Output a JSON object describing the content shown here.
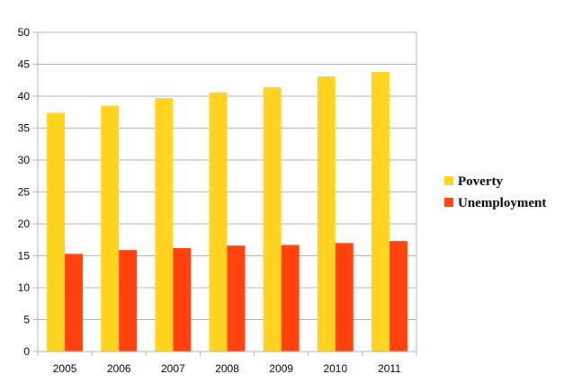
{
  "chart_data": {
    "type": "bar",
    "title": "",
    "xlabel": "",
    "ylabel": "",
    "categories": [
      "2005",
      "2006",
      "2007",
      "2008",
      "2009",
      "2010",
      "2011"
    ],
    "ylim": [
      0,
      50
    ],
    "yticks": [
      0,
      5,
      10,
      15,
      20,
      25,
      30,
      35,
      40,
      45,
      50
    ],
    "grid": true,
    "legend_position": "right",
    "series": [
      {
        "name": "Poverty",
        "color": "#FFD320",
        "values": [
          37.4,
          38.5,
          39.7,
          40.6,
          41.4,
          43.1,
          43.8
        ]
      },
      {
        "name": "Unemployment",
        "color": "#FF420E",
        "values": [
          15.3,
          15.9,
          16.2,
          16.6,
          16.7,
          17.0,
          17.3
        ]
      }
    ]
  }
}
